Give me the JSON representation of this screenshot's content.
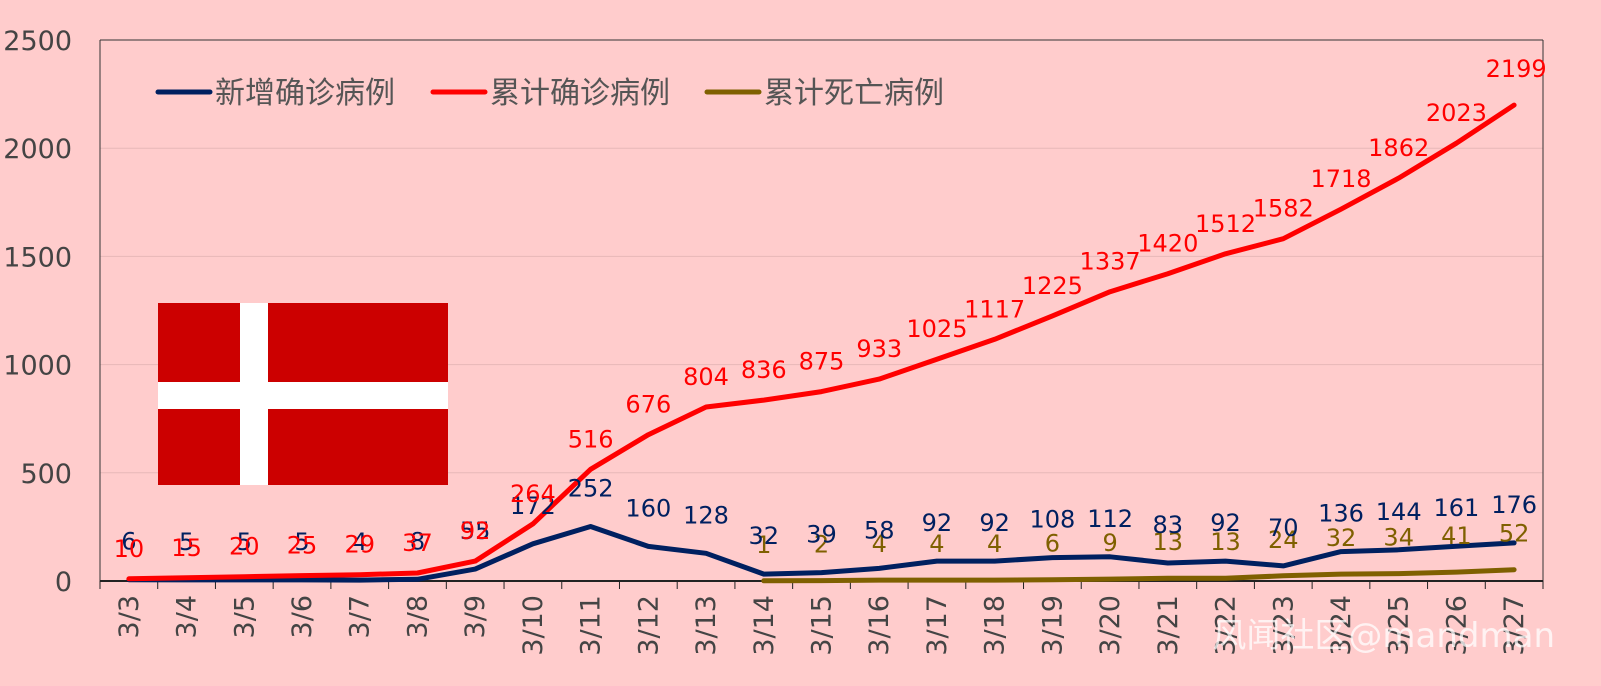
{
  "chart_data": {
    "type": "line",
    "categories": [
      "3/3",
      "3/4",
      "3/5",
      "3/6",
      "3/7",
      "3/8",
      "3/9",
      "3/10",
      "3/11",
      "3/12",
      "3/13",
      "3/14",
      "3/15",
      "3/16",
      "3/17",
      "3/18",
      "3/19",
      "3/20",
      "3/21",
      "3/22",
      "3/23",
      "3/24",
      "3/25",
      "3/26",
      "3/27"
    ],
    "ylim": [
      0,
      2500
    ],
    "yticks": [
      0,
      500,
      1000,
      1500,
      2000,
      2500
    ],
    "grid": true,
    "legend_position": "top-left",
    "series": [
      {
        "name": "新增确诊病例",
        "color": "#002060",
        "values": [
          6,
          5,
          5,
          5,
          4,
          8,
          55,
          172,
          252,
          160,
          128,
          32,
          39,
          58,
          92,
          92,
          108,
          112,
          83,
          92,
          70,
          136,
          144,
          161,
          176
        ]
      },
      {
        "name": "累计确诊病例",
        "color": "#FF0000",
        "values": [
          10,
          15,
          20,
          25,
          29,
          37,
          92,
          264,
          516,
          676,
          804,
          836,
          875,
          933,
          1025,
          1117,
          1225,
          1337,
          1420,
          1512,
          1582,
          1718,
          1862,
          2023,
          2199
        ]
      },
      {
        "name": "累计死亡病例",
        "color": "#7F6000",
        "values": [
          null,
          null,
          null,
          null,
          null,
          null,
          null,
          null,
          null,
          null,
          null,
          1,
          2,
          4,
          4,
          4,
          6,
          9,
          13,
          13,
          24,
          32,
          34,
          41,
          52
        ]
      }
    ]
  },
  "watermark": "风闻社区@mandman",
  "flag": "denmark-flag"
}
